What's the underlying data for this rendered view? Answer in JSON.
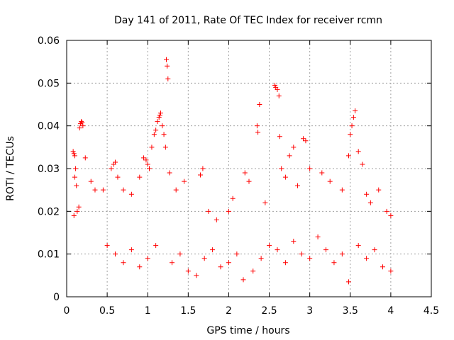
{
  "chart_data": {
    "type": "scatter",
    "title": "Day 141 of 2011, Rate Of TEC Index for receiver rcmn",
    "xlabel": "GPS time / hours",
    "ylabel": "ROTI / TECUs",
    "xlim": [
      0,
      4.5
    ],
    "ylim": [
      0,
      0.06
    ],
    "x_ticks": [
      0,
      0.5,
      1,
      1.5,
      2,
      2.5,
      3,
      3.5,
      4,
      4.5
    ],
    "x_tick_labels": [
      "0",
      "0.5",
      "1",
      "1.5",
      "2",
      "2.5",
      "3",
      "3.5",
      "4",
      "4.5"
    ],
    "y_ticks": [
      0,
      0.01,
      0.02,
      0.03,
      0.04,
      0.05,
      0.06
    ],
    "y_tick_labels": [
      "0",
      "0.01",
      "0.02",
      "0.03",
      "0.04",
      "0.05",
      "0.06"
    ],
    "grid": true,
    "marker": "+",
    "series": [
      {
        "color": "#ff0000",
        "points": [
          [
            0.08,
            0.034
          ],
          [
            0.09,
            0.0335
          ],
          [
            0.1,
            0.033
          ],
          [
            0.11,
            0.03
          ],
          [
            0.1,
            0.028
          ],
          [
            0.12,
            0.026
          ],
          [
            0.13,
            0.02
          ],
          [
            0.09,
            0.019
          ],
          [
            0.15,
            0.021
          ],
          [
            0.16,
            0.0395
          ],
          [
            0.17,
            0.0405
          ],
          [
            0.18,
            0.041
          ],
          [
            0.19,
            0.0408
          ],
          [
            0.2,
            0.04
          ],
          [
            0.23,
            0.0325
          ],
          [
            0.3,
            0.027
          ],
          [
            0.35,
            0.025
          ],
          [
            0.45,
            0.025
          ],
          [
            0.55,
            0.03
          ],
          [
            0.58,
            0.031
          ],
          [
            0.6,
            0.0315
          ],
          [
            0.63,
            0.028
          ],
          [
            0.7,
            0.025
          ],
          [
            0.8,
            0.024
          ],
          [
            0.9,
            0.028
          ],
          [
            0.95,
            0.0325
          ],
          [
            0.98,
            0.032
          ],
          [
            1.0,
            0.031
          ],
          [
            1.02,
            0.03
          ],
          [
            1.05,
            0.035
          ],
          [
            1.08,
            0.038
          ],
          [
            1.1,
            0.039
          ],
          [
            1.12,
            0.041
          ],
          [
            1.14,
            0.042
          ],
          [
            1.15,
            0.0425
          ],
          [
            1.16,
            0.043
          ],
          [
            1.18,
            0.04
          ],
          [
            1.2,
            0.038
          ],
          [
            1.22,
            0.035
          ],
          [
            1.23,
            0.0555
          ],
          [
            1.24,
            0.054
          ],
          [
            1.25,
            0.051
          ],
          [
            1.27,
            0.029
          ],
          [
            1.35,
            0.025
          ],
          [
            1.45,
            0.027
          ],
          [
            1.65,
            0.0285
          ],
          [
            1.68,
            0.03
          ],
          [
            1.75,
            0.02
          ],
          [
            1.85,
            0.018
          ],
          [
            2.0,
            0.02
          ],
          [
            2.05,
            0.023
          ],
          [
            2.2,
            0.029
          ],
          [
            2.25,
            0.027
          ],
          [
            2.35,
            0.04
          ],
          [
            2.36,
            0.0385
          ],
          [
            2.38,
            0.045
          ],
          [
            2.45,
            0.022
          ],
          [
            2.57,
            0.0495
          ],
          [
            2.58,
            0.049
          ],
          [
            2.6,
            0.0485
          ],
          [
            2.62,
            0.047
          ],
          [
            2.63,
            0.0375
          ],
          [
            2.65,
            0.03
          ],
          [
            2.7,
            0.028
          ],
          [
            2.75,
            0.033
          ],
          [
            2.8,
            0.035
          ],
          [
            2.85,
            0.026
          ],
          [
            2.92,
            0.037
          ],
          [
            2.95,
            0.0365
          ],
          [
            3.0,
            0.03
          ],
          [
            3.15,
            0.029
          ],
          [
            3.25,
            0.027
          ],
          [
            3.4,
            0.025
          ],
          [
            3.48,
            0.033
          ],
          [
            3.5,
            0.038
          ],
          [
            3.52,
            0.04
          ],
          [
            3.54,
            0.042
          ],
          [
            3.56,
            0.0435
          ],
          [
            3.6,
            0.034
          ],
          [
            3.65,
            0.031
          ],
          [
            3.7,
            0.024
          ],
          [
            3.75,
            0.022
          ],
          [
            3.85,
            0.025
          ],
          [
            3.95,
            0.02
          ],
          [
            4.0,
            0.019
          ],
          [
            0.5,
            0.012
          ],
          [
            0.6,
            0.01
          ],
          [
            0.7,
            0.008
          ],
          [
            0.8,
            0.011
          ],
          [
            0.9,
            0.007
          ],
          [
            1.0,
            0.009
          ],
          [
            1.1,
            0.012
          ],
          [
            1.3,
            0.008
          ],
          [
            1.4,
            0.01
          ],
          [
            1.5,
            0.006
          ],
          [
            1.6,
            0.005
          ],
          [
            1.7,
            0.009
          ],
          [
            1.8,
            0.011
          ],
          [
            1.9,
            0.007
          ],
          [
            2.0,
            0.008
          ],
          [
            2.1,
            0.01
          ],
          [
            2.18,
            0.004
          ],
          [
            2.3,
            0.006
          ],
          [
            2.4,
            0.009
          ],
          [
            2.5,
            0.012
          ],
          [
            2.6,
            0.011
          ],
          [
            2.7,
            0.008
          ],
          [
            2.8,
            0.013
          ],
          [
            2.9,
            0.01
          ],
          [
            3.0,
            0.009
          ],
          [
            3.1,
            0.014
          ],
          [
            3.2,
            0.011
          ],
          [
            3.3,
            0.008
          ],
          [
            3.4,
            0.01
          ],
          [
            3.48,
            0.0035
          ],
          [
            3.6,
            0.012
          ],
          [
            3.7,
            0.009
          ],
          [
            3.8,
            0.011
          ],
          [
            3.9,
            0.007
          ],
          [
            4.0,
            0.006
          ]
        ]
      }
    ]
  }
}
